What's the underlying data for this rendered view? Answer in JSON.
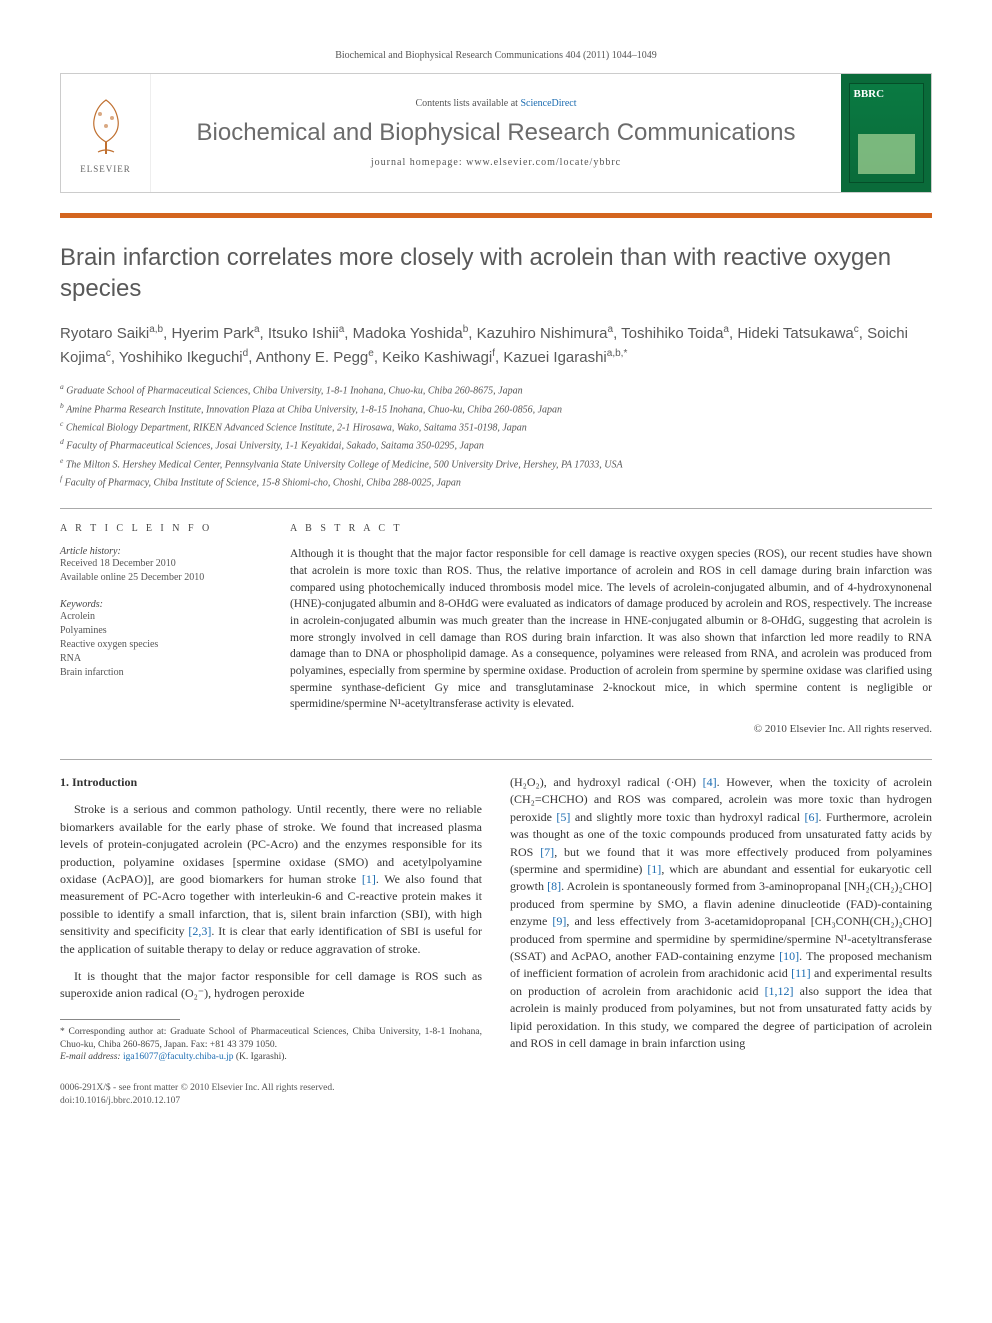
{
  "header": {
    "citation": "Biochemical and Biophysical Research Communications 404 (2011) 1044–1049",
    "contents_prefix": "Contents lists available at ",
    "contents_link": "ScienceDirect",
    "journal": "Biochemical and Biophysical Research Communications",
    "homepage_prefix": "journal homepage: ",
    "homepage_url": "www.elsevier.com/locate/ybbrc",
    "publisher": "ELSEVIER"
  },
  "article": {
    "title": "Brain infarction correlates more closely with acrolein than with reactive oxygen species",
    "authors_html": "Ryotaro Saiki<sup>a,b</sup>, Hyerim Park<sup>a</sup>, Itsuko Ishii<sup>a</sup>, Madoka Yoshida<sup>b</sup>, Kazuhiro Nishimura<sup>a</sup>, Toshihiko Toida<sup>a</sup>, Hideki Tatsukawa<sup>c</sup>, Soichi Kojima<sup>c</sup>, Yoshihiko Ikeguchi<sup>d</sup>, Anthony E. Pegg<sup>e</sup>, Keiko Kashiwagi<sup>f</sup>, Kazuei Igarashi<sup>a,b,*</sup>",
    "affiliations": [
      "a Graduate School of Pharmaceutical Sciences, Chiba University, 1-8-1 Inohana, Chuo-ku, Chiba 260-8675, Japan",
      "b Amine Pharma Research Institute, Innovation Plaza at Chiba University, 1-8-15 Inohana, Chuo-ku, Chiba 260-0856, Japan",
      "c Chemical Biology Department, RIKEN Advanced Science Institute, 2-1 Hirosawa, Wako, Saitama 351-0198, Japan",
      "d Faculty of Pharmaceutical Sciences, Josai University, 1-1 Keyakidai, Sakado, Saitama 350-0295, Japan",
      "e The Milton S. Hershey Medical Center, Pennsylvania State University College of Medicine, 500 University Drive, Hershey, PA 17033, USA",
      "f Faculty of Pharmacy, Chiba Institute of Science, 15-8 Shiomi-cho, Choshi, Chiba 288-0025, Japan"
    ]
  },
  "info": {
    "heading": "A R T I C L E   I N F O",
    "history_label": "Article history:",
    "received": "Received 18 December 2010",
    "available": "Available online 25 December 2010",
    "keywords_label": "Keywords:",
    "keywords": [
      "Acrolein",
      "Polyamines",
      "Reactive oxygen species",
      "RNA",
      "Brain infarction"
    ]
  },
  "abstract": {
    "heading": "A B S T R A C T",
    "text": "Although it is thought that the major factor responsible for cell damage is reactive oxygen species (ROS), our recent studies have shown that acrolein is more toxic than ROS. Thus, the relative importance of acrolein and ROS in cell damage during brain infarction was compared using photochemically induced thrombosis model mice. The levels of acrolein-conjugated albumin, and of 4-hydroxynonenal (HNE)-conjugated albumin and 8-OHdG were evaluated as indicators of damage produced by acrolein and ROS, respectively. The increase in acrolein-conjugated albumin was much greater than the increase in HNE-conjugated albumin or 8-OHdG, suggesting that acrolein is more strongly involved in cell damage than ROS during brain infarction. It was also shown that infarction led more readily to RNA damage than to DNA or phospholipid damage. As a consequence, polyamines were released from RNA, and acrolein was produced from polyamines, especially from spermine by spermine oxidase. Production of acrolein from spermine by spermine oxidase was clarified using spermine synthase-deficient Gy mice and transglutaminase 2-knockout mice, in which spermine content is negligible or spermidine/spermine N¹-acetyltransferase activity is elevated.",
    "copyright": "© 2010 Elsevier Inc. All rights reserved."
  },
  "body": {
    "section_heading": "1. Introduction",
    "p1": "Stroke is a serious and common pathology. Until recently, there were no reliable biomarkers available for the early phase of stroke. We found that increased plasma levels of protein-conjugated acrolein (PC-Acro) and the enzymes responsible for its production, polyamine oxidases [spermine oxidase (SMO) and acetylpolyamine oxidase (AcPAO)], are good biomarkers for human stroke [1]. We also found that measurement of PC-Acro together with interleukin-6 and C-reactive protein makes it possible to identify a small infarction, that is, silent brain infarction (SBI), with high sensitivity and specificity [2,3]. It is clear that early identification of SBI is useful for the application of suitable therapy to delay or reduce aggravation of stroke.",
    "p2": "It is thought that the major factor responsible for cell damage is ROS such as superoxide anion radical (O₂⁻), hydrogen peroxide",
    "p3": "(H₂O₂), and hydroxyl radical (·OH) [4]. However, when the toxicity of acrolein (CH₂=CHCHO) and ROS was compared, acrolein was more toxic than hydrogen peroxide [5] and slightly more toxic than hydroxyl radical [6]. Furthermore, acrolein was thought as one of the toxic compounds produced from unsaturated fatty acids by ROS [7], but we found that it was more effectively produced from polyamines (spermine and spermidine) [1], which are abundant and essential for eukaryotic cell growth [8]. Acrolein is spontaneously formed from 3-aminopropanal [NH₂(CH₂)₂CHO] produced from spermine by SMO, a flavin adenine dinucleotide (FAD)-containing enzyme [9], and less effectively from 3-acetamidopropanal [CH₃CONH(CH₂)₂CHO] produced from spermine and spermidine by spermidine/spermine N¹-acetyltransferase (SSAT) and AcPAO, another FAD-containing enzyme [10]. The proposed mechanism of inefficient formation of acrolein from arachidonic acid [11] and experimental results on production of acrolein from arachidonic acid [1,12] also support the idea that acrolein is mainly produced from polyamines, but not from unsaturated fatty acids by lipid peroxidation. In this study, we compared the degree of participation of acrolein and ROS in cell damage in brain infarction using"
  },
  "footnote": {
    "corresponding": "* Corresponding author at: Graduate School of Pharmaceutical Sciences, Chiba University, 1-8-1 Inohana, Chuo-ku, Chiba 260-8675, Japan. Fax: +81 43 379 1050.",
    "email_label": "E-mail address:",
    "email": "iga16077@faculty.chiba-u.jp",
    "email_name": "(K. Igarashi)."
  },
  "footer": {
    "issn": "0006-291X/$ - see front matter © 2010 Elsevier Inc. All rights reserved.",
    "doi": "doi:10.1016/j.bbrc.2010.12.107"
  },
  "colors": {
    "orange_bar": "#d4651f",
    "link": "#1a6bb0",
    "cover_bg": "#0a6b3a",
    "heading_gray": "#595959"
  }
}
